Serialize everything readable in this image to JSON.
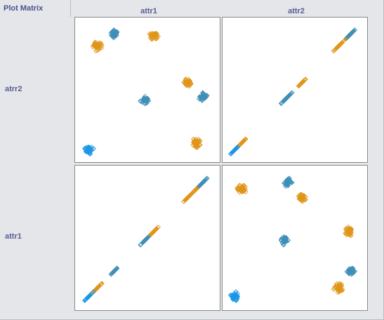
{
  "window": {
    "title": "Plot Matrix"
  },
  "columns": [
    {
      "label": "attr1"
    },
    {
      "label": "attr2"
    }
  ],
  "rows": [
    {
      "label": "atrr2"
    },
    {
      "label": "attr1"
    }
  ],
  "colors": {
    "orange": "#e0951a",
    "blue_bright": "#1c97e6",
    "blue_steel": "#3f8fb8",
    "background": "#e4e6ea"
  },
  "chart_data": {
    "type": "scatter",
    "marker": "diamond",
    "variables": [
      "attr1",
      "attr2"
    ],
    "axis_range": [
      0,
      1
    ],
    "clusters": [
      {
        "color": "orange",
        "attr1": 0.12,
        "attr2": 0.83,
        "n": 40
      },
      {
        "color": "orange",
        "attr1": 0.55,
        "attr2": 0.9,
        "n": 40
      },
      {
        "color": "orange",
        "attr1": 0.87,
        "attr2": 0.1,
        "n": 40
      },
      {
        "color": "orange",
        "attr1": 0.8,
        "attr2": 0.55,
        "n": 40
      },
      {
        "color": "blue_bright",
        "attr1": 0.06,
        "attr2": 0.05,
        "n": 40
      },
      {
        "color": "blue_steel",
        "attr1": 0.48,
        "attr2": 0.42,
        "n": 40
      },
      {
        "color": "blue_steel",
        "attr1": 0.92,
        "attr2": 0.45,
        "n": 40
      },
      {
        "color": "blue_steel",
        "attr1": 0.25,
        "attr2": 0.92,
        "n": 40
      }
    ]
  }
}
